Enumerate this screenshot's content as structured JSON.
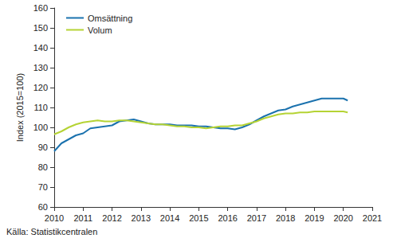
{
  "chart_data": {
    "type": "line",
    "y_label": "Index (2015=100)",
    "source": "Källa: Statistikcentralen",
    "x": [
      2010.0,
      2010.25,
      2010.5,
      2010.75,
      2011.0,
      2011.25,
      2011.5,
      2011.75,
      2012.0,
      2012.25,
      2012.5,
      2012.75,
      2013.0,
      2013.25,
      2013.5,
      2013.75,
      2014.0,
      2014.25,
      2014.5,
      2014.75,
      2015.0,
      2015.25,
      2015.5,
      2015.75,
      2016.0,
      2016.25,
      2016.5,
      2016.75,
      2017.0,
      2017.25,
      2017.5,
      2017.75,
      2018.0,
      2018.25,
      2018.5,
      2018.75,
      2019.0,
      2019.25,
      2019.5,
      2019.75,
      2020.0,
      2020.15
    ],
    "series": [
      {
        "name": "Omsättning",
        "color": "#1b72ae",
        "values": [
          88,
          92,
          94,
          96,
          97,
          99.5,
          100,
          100.5,
          101,
          103,
          103.5,
          104,
          103,
          102,
          101.5,
          101.5,
          101.5,
          101,
          101,
          101,
          100.5,
          100.5,
          100,
          99.5,
          99.5,
          99,
          100,
          101.5,
          103.5,
          105.5,
          107,
          108.5,
          109,
          110.5,
          111.5,
          112.5,
          113.5,
          114.5,
          114.5,
          114.5,
          114.5,
          113.5
        ]
      },
      {
        "name": "Volum",
        "color": "#b5d334",
        "values": [
          96.5,
          98,
          100,
          101.5,
          102.5,
          103,
          103.5,
          103,
          103,
          103.5,
          103.5,
          103,
          102.5,
          102,
          101.5,
          101.5,
          101,
          100.5,
          100.5,
          100,
          100,
          99.5,
          100,
          100.5,
          100.5,
          101,
          101,
          102,
          103,
          104.5,
          105.5,
          106.5,
          107,
          107,
          107.5,
          107.5,
          108,
          108,
          108,
          108,
          108,
          107.5
        ]
      }
    ],
    "xlim": [
      2010,
      2021
    ],
    "xticks": [
      2010,
      2011,
      2012,
      2013,
      2014,
      2015,
      2016,
      2017,
      2018,
      2019,
      2020,
      2021
    ],
    "ylim": [
      60,
      160
    ],
    "yticks": [
      60,
      70,
      80,
      90,
      100,
      110,
      120,
      130,
      140,
      150,
      160
    ],
    "grid": false,
    "legend": "upper left"
  }
}
